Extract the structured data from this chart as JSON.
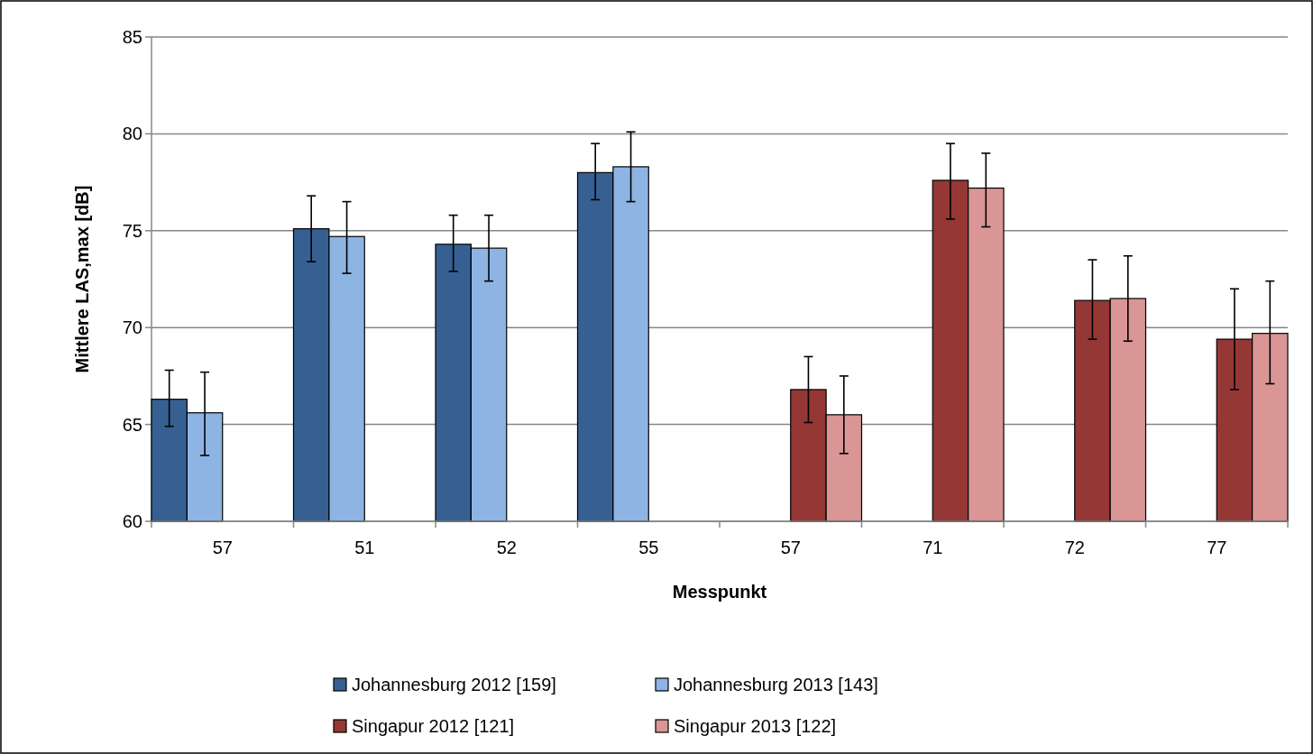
{
  "chart_data": {
    "type": "bar",
    "xlabel": "Messpunkt",
    "ylabel": "Mittlere LAS,max [dB]",
    "categories": [
      "57",
      "51",
      "52",
      "55",
      "57",
      "71",
      "72",
      "77"
    ],
    "series": [
      {
        "name": "Johannesburg 2012 [159]",
        "color": "#376092",
        "values": [
          66.3,
          75.1,
          74.3,
          78.0,
          null,
          null,
          null,
          null
        ],
        "errors": [
          [
            64.9,
            67.8
          ],
          [
            73.4,
            76.8
          ],
          [
            72.9,
            75.8
          ],
          [
            76.6,
            79.5
          ],
          null,
          null,
          null,
          null
        ]
      },
      {
        "name": "Johannesburg 2013 [143]",
        "color": "#8eb4e3",
        "values": [
          65.6,
          74.7,
          74.1,
          78.3,
          null,
          null,
          null,
          null
        ],
        "errors": [
          [
            63.4,
            67.7
          ],
          [
            72.8,
            76.5
          ],
          [
            72.4,
            75.8
          ],
          [
            76.5,
            80.1
          ],
          null,
          null,
          null,
          null
        ]
      },
      {
        "name": "Singapur 2012 [121]",
        "color": "#953735",
        "values": [
          null,
          null,
          null,
          null,
          66.8,
          77.6,
          71.4,
          69.4
        ],
        "errors": [
          null,
          null,
          null,
          null,
          [
            65.1,
            68.5
          ],
          [
            75.6,
            79.5
          ],
          [
            69.4,
            73.5
          ],
          [
            66.8,
            72.0
          ]
        ]
      },
      {
        "name": "Singapur 2013 [122]",
        "color": "#d99694",
        "values": [
          null,
          null,
          null,
          null,
          65.5,
          77.2,
          71.5,
          69.7
        ],
        "errors": [
          null,
          null,
          null,
          null,
          [
            63.5,
            67.5
          ],
          [
            75.2,
            79.0
          ],
          [
            69.3,
            73.7
          ],
          [
            67.1,
            72.4
          ]
        ]
      }
    ],
    "ylim": [
      60,
      85
    ],
    "yticks": [
      60,
      65,
      70,
      75,
      80,
      85
    ],
    "grid": "y",
    "legend": "bottom"
  }
}
